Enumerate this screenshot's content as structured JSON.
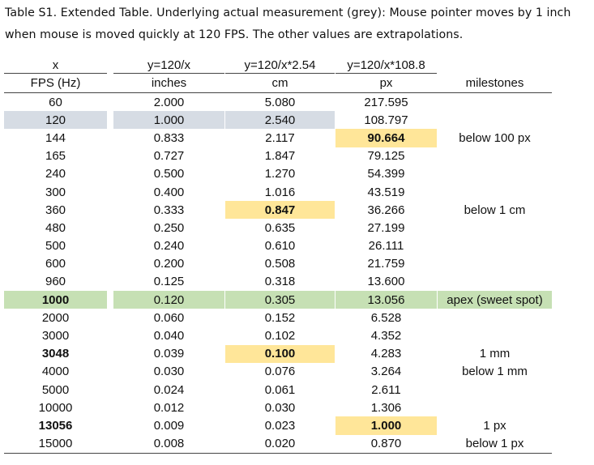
{
  "caption": {
    "line1": "Table S1. Extended Table. Underlying actual measurement (grey): Mouse pointer moves by 1 inch",
    "line2": "when mouse is moved quickly at 120 FPS. The other values are extrapolations."
  },
  "headers": {
    "formula": [
      "x",
      "y=120/x",
      "y=120/x*2.54",
      "y=120/x*108.8",
      ""
    ],
    "units": [
      "FPS (Hz)",
      "inches",
      "cm",
      "px",
      "milestones"
    ]
  },
  "highlight_colors": {
    "grey": "#d6dce4",
    "green": "#c6e0b4",
    "yellow": "#ffe699"
  },
  "rows": [
    {
      "fps": "60",
      "inches": "2.000",
      "cm": "5.080",
      "px": "217.595",
      "milestone": ""
    },
    {
      "fps": "120",
      "inches": "1.000",
      "cm": "2.540",
      "px": "108.797",
      "milestone": ""
    },
    {
      "fps": "144",
      "inches": "0.833",
      "cm": "2.117",
      "px": "90.664",
      "milestone": "below 100 px"
    },
    {
      "fps": "165",
      "inches": "0.727",
      "cm": "1.847",
      "px": "79.125",
      "milestone": ""
    },
    {
      "fps": "240",
      "inches": "0.500",
      "cm": "1.270",
      "px": "54.399",
      "milestone": ""
    },
    {
      "fps": "300",
      "inches": "0.400",
      "cm": "1.016",
      "px": "43.519",
      "milestone": ""
    },
    {
      "fps": "360",
      "inches": "0.333",
      "cm": "0.847",
      "px": "36.266",
      "milestone": "below 1 cm"
    },
    {
      "fps": "480",
      "inches": "0.250",
      "cm": "0.635",
      "px": "27.199",
      "milestone": ""
    },
    {
      "fps": "500",
      "inches": "0.240",
      "cm": "0.610",
      "px": "26.111",
      "milestone": ""
    },
    {
      "fps": "600",
      "inches": "0.200",
      "cm": "0.508",
      "px": "21.759",
      "milestone": ""
    },
    {
      "fps": "960",
      "inches": "0.125",
      "cm": "0.318",
      "px": "13.600",
      "milestone": ""
    },
    {
      "fps": "1000",
      "inches": "0.120",
      "cm": "0.305",
      "px": "13.056",
      "milestone": "apex (sweet spot)"
    },
    {
      "fps": "2000",
      "inches": "0.060",
      "cm": "0.152",
      "px": "6.528",
      "milestone": ""
    },
    {
      "fps": "3000",
      "inches": "0.040",
      "cm": "0.102",
      "px": "4.352",
      "milestone": ""
    },
    {
      "fps": "3048",
      "inches": "0.039",
      "cm": "0.100",
      "px": "4.283",
      "milestone": "1 mm"
    },
    {
      "fps": "4000",
      "inches": "0.030",
      "cm": "0.076",
      "px": "3.264",
      "milestone": "below 1 mm"
    },
    {
      "fps": "5000",
      "inches": "0.024",
      "cm": "0.061",
      "px": "2.611",
      "milestone": ""
    },
    {
      "fps": "10000",
      "inches": "0.012",
      "cm": "0.030",
      "px": "1.306",
      "milestone": ""
    },
    {
      "fps": "13056",
      "inches": "0.009",
      "cm": "0.023",
      "px": "1.000",
      "milestone": "1 px"
    },
    {
      "fps": "15000",
      "inches": "0.008",
      "cm": "0.020",
      "px": "0.870",
      "milestone": "below 1 px"
    }
  ]
}
